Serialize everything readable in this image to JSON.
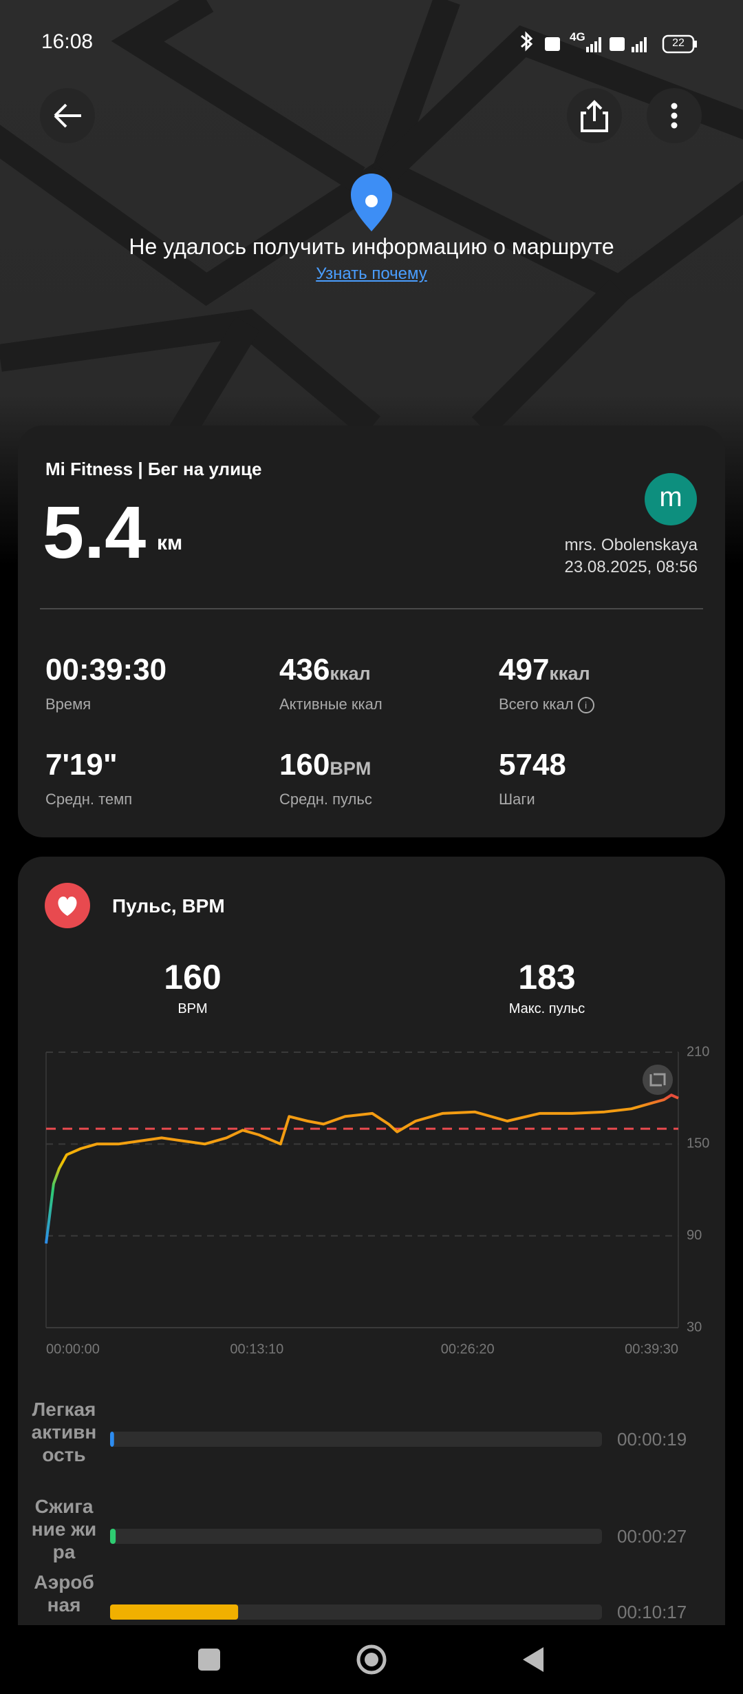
{
  "status_bar": {
    "time": "16:08",
    "network": "4G",
    "battery": "22"
  },
  "map": {
    "message": "Не удалось получить информацию о маршруте",
    "link": "Узнать почему"
  },
  "summary": {
    "title": "Mi Fitness | Бег на улице",
    "distance": "5.4",
    "distance_unit": "км",
    "avatar_letter": "m",
    "user": "mrs. Obolenskaya",
    "datetime": "23.08.2025, 08:56",
    "stats": [
      {
        "value": "00:39:30",
        "label": "Время"
      },
      {
        "value": "436",
        "unit": "ккал",
        "label": "Активные ккал"
      },
      {
        "value": "497",
        "unit": "ккал",
        "label": "Всего ккал"
      },
      {
        "value": "7'19\"",
        "label": "Средн. темп"
      },
      {
        "value": "160",
        "unit": "BPM",
        "label": "Средн. пульс"
      },
      {
        "value": "5748",
        "label": "Шаги"
      }
    ]
  },
  "heart_rate": {
    "title": "Пульс, BPM",
    "avg": "160",
    "avg_label": "BPM",
    "max": "183",
    "max_label": "Макс. пульс",
    "chart": {
      "type": "line",
      "x": [
        0,
        28,
        49,
        77,
        130,
        190,
        271,
        352,
        433,
        514,
        595,
        676,
        737,
        798,
        879,
        911,
        980,
        1040,
        1121,
        1223,
        1284,
        1316,
        1385,
        1486,
        1607,
        1729,
        1850,
        1972,
        2093,
        2194,
        2275,
        2316,
        2344,
        2370
      ],
      "values": [
        85,
        124,
        134,
        143,
        147,
        150,
        150,
        152,
        154,
        152,
        150,
        154,
        159,
        156,
        150,
        168,
        165,
        163,
        168,
        170,
        163,
        158,
        165,
        170,
        171,
        165,
        170,
        170,
        171,
        173,
        177,
        179,
        182,
        180
      ],
      "xlim": [
        0,
        2370
      ],
      "xticks": [
        {
          "value": 0,
          "label": "00:00:00"
        },
        {
          "value": 790,
          "label": "00:13:10"
        },
        {
          "value": 1580,
          "label": "00:26:20"
        },
        {
          "value": 2370,
          "label": "00:39:30"
        }
      ],
      "ylim": [
        30,
        210
      ],
      "yticks": [
        30,
        90,
        150,
        210
      ],
      "reference_line": 160
    },
    "zones": [
      {
        "name": "Легкая активность",
        "color": "#2d8cf0",
        "duration": {
          "value": 19,
          "label": "00:00:19"
        }
      },
      {
        "name": "Сжигание жира",
        "color": "#2ecc71",
        "duration": {
          "value": 27,
          "label": "00:00:27"
        }
      },
      {
        "name": "Аэробная",
        "color": "#f1b000",
        "duration": {
          "value": 617,
          "label": "00:10:17"
        }
      }
    ]
  }
}
